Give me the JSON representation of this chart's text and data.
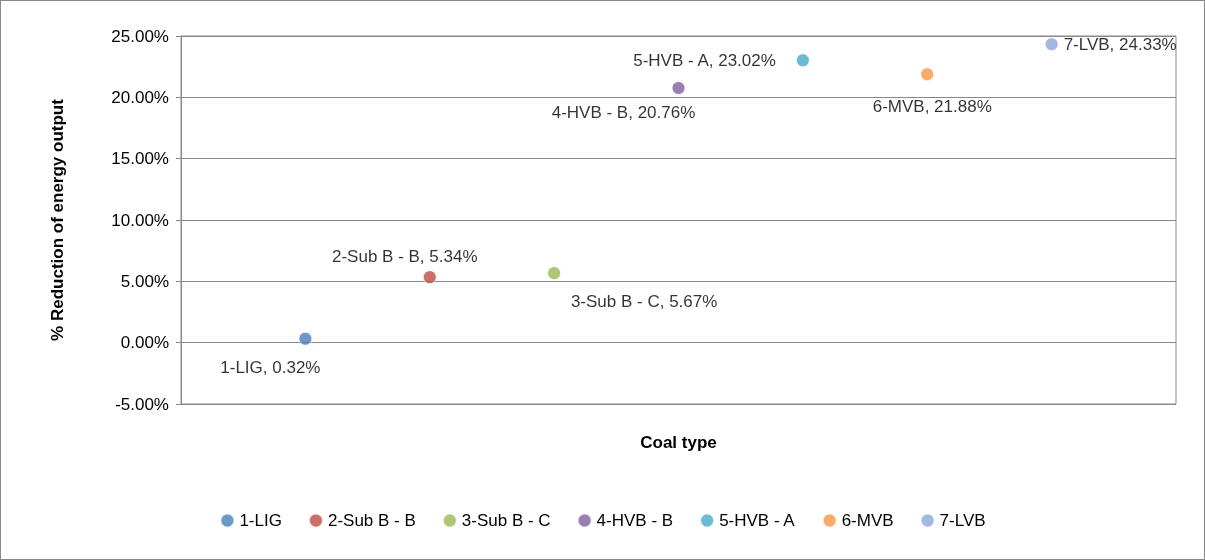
{
  "chart_data": {
    "type": "scatter",
    "xlabel": "Coal type",
    "ylabel": "% Reduction of energy output",
    "categories": [
      null,
      null,
      null,
      null,
      null,
      null,
      null
    ],
    "series": [
      {
        "name": "1-LIG",
        "color": "#4a7ebb",
        "values": [
          0.32,
          null,
          null,
          null,
          null,
          null,
          null
        ],
        "value_labels": [
          "1-LIG, 0.32%",
          null,
          null,
          null,
          null,
          null,
          null
        ]
      },
      {
        "name": "2-Sub B - B",
        "color": "#be4b48",
        "values": [
          null,
          5.34,
          null,
          null,
          null,
          null,
          null
        ],
        "value_labels": [
          null,
          "2-Sub B - B, 5.34%",
          null,
          null,
          null,
          null,
          null
        ]
      },
      {
        "name": "3-Sub B - C",
        "color": "#98b954",
        "values": [
          null,
          null,
          5.67,
          null,
          null,
          null,
          null
        ],
        "value_labels": [
          null,
          null,
          "3-Sub B - C, 5.67%",
          null,
          null,
          null,
          null
        ]
      },
      {
        "name": "4-HVB - B",
        "color": "#7d60a0",
        "values": [
          null,
          null,
          null,
          20.76,
          null,
          null,
          null
        ],
        "value_labels": [
          null,
          null,
          null,
          "4-HVB - B, 20.76%",
          null,
          null,
          null
        ]
      },
      {
        "name": "5-HVB - A",
        "color": "#46aac5",
        "values": [
          null,
          null,
          null,
          null,
          23.02,
          null,
          null
        ],
        "value_labels": [
          null,
          null,
          null,
          null,
          "5-HVB - A, 23.02%",
          null,
          null
        ]
      },
      {
        "name": "6-MVB",
        "color": "#f79646",
        "values": [
          null,
          null,
          null,
          null,
          null,
          21.88,
          null
        ],
        "value_labels": [
          null,
          null,
          null,
          null,
          null,
          "6-MVB, 21.88%",
          null
        ]
      },
      {
        "name": "7-LVB",
        "color": "#8fa8d8",
        "values": [
          null,
          null,
          null,
          null,
          null,
          null,
          24.33
        ],
        "value_labels": [
          null,
          null,
          null,
          null,
          null,
          null,
          "7-LVB, 24.33%"
        ]
      }
    ],
    "ylim": [
      -5,
      25
    ],
    "yticks": [
      {
        "value": -5,
        "label": "-5.00%"
      },
      {
        "value": 0,
        "label": "0.00%"
      },
      {
        "value": 5,
        "label": "5.00%"
      },
      {
        "value": 10,
        "label": "10.00%"
      },
      {
        "value": 15,
        "label": "15.00%"
      },
      {
        "value": 20,
        "label": "20.00%"
      },
      {
        "value": 25,
        "label": "25.00%"
      }
    ],
    "grid": "y",
    "legend": "bottom",
    "marker": "circle",
    "tick_labels": "y"
  }
}
